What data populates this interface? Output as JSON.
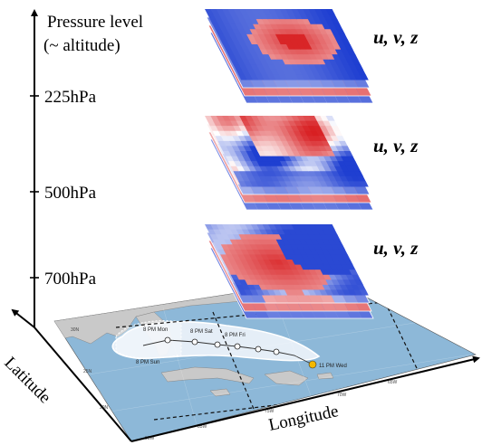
{
  "figure": {
    "vertical_axis": {
      "title_line1": "Pressure level",
      "title_line2": "(~ altitude)"
    },
    "levels": [
      {
        "label": "225hPa",
        "variables": "u,  v,  z"
      },
      {
        "label": "500hPa",
        "variables": "u,  v,  z"
      },
      {
        "label": "700hPa",
        "variables": "u,  v,  z"
      }
    ],
    "horizontal_axes": {
      "latitude_label": "Latitude",
      "longitude_label": "Longitude"
    },
    "track_map": {
      "forecast_points": [
        {
          "label": "8 PM Mon"
        },
        {
          "label": "8 PM Sat"
        },
        {
          "label": "8 PM Fri"
        },
        {
          "label": "8 PM Sun"
        },
        {
          "label": "11 PM Wed"
        }
      ],
      "longitude_ticks": [
        "90W",
        "85W",
        "75W",
        "70W",
        "65W"
      ],
      "latitude_ticks": [
        "30N",
        "25N",
        "20N"
      ]
    },
    "colors": {
      "positive": "#d7191c",
      "negative": "#1f3fd1",
      "neutral": "#ffffff",
      "ocean": "#8db8d8",
      "land": "#c8c8c8",
      "cone": "#e8f1fb"
    }
  }
}
